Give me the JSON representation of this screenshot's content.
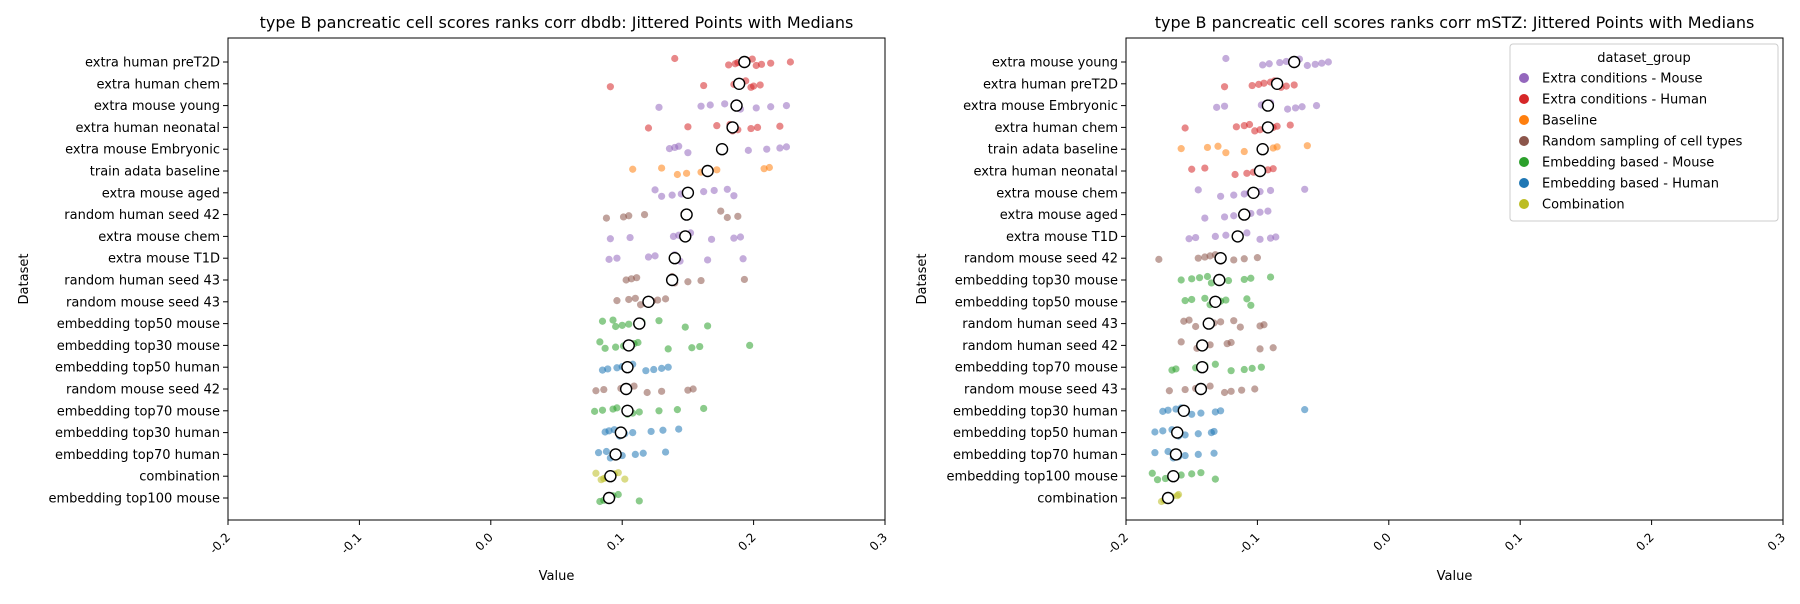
{
  "chart_data": [
    {
      "type": "scatter",
      "title": "type B pancreatic cell scores ranks corr dbdb: Jittered Points with Medians",
      "xlabel": "Value",
      "ylabel": "Dataset",
      "xlim": [
        -0.2,
        0.3
      ],
      "xticks": [
        "-0.2",
        "-0.1",
        "0.0",
        "0.1",
        "0.2",
        "0.3"
      ],
      "grid": false,
      "categories": [
        "extra human preT2D",
        "extra human chem",
        "extra mouse young",
        "extra human neonatal",
        "extra mouse Embryonic",
        "train adata baseline",
        "extra mouse aged",
        "random human seed 42",
        "extra mouse chem",
        "extra mouse T1D",
        "random human seed 43",
        "random mouse seed 43",
        "embedding top50 mouse",
        "embedding top30 mouse",
        "embedding top50 human",
        "random mouse seed 42",
        "embedding top70 mouse",
        "embedding top30 human",
        "embedding top70 human",
        "combination",
        "embedding top100 mouse"
      ],
      "groups": [
        "Extra conditions - Human",
        "Extra conditions - Human",
        "Extra conditions - Mouse",
        "Extra conditions - Human",
        "Extra conditions - Mouse",
        "Baseline",
        "Extra conditions - Mouse",
        "Random sampling of cell types",
        "Extra conditions - Mouse",
        "Extra conditions - Mouse",
        "Random sampling of cell types",
        "Random sampling of cell types",
        "Embedding based - Mouse",
        "Embedding based - Mouse",
        "Embedding based - Human",
        "Random sampling of cell types",
        "Embedding based - Mouse",
        "Embedding based - Human",
        "Embedding based - Human",
        "Combination",
        "Embedding based - Mouse"
      ],
      "medians": [
        0.193,
        0.189,
        0.187,
        0.184,
        0.176,
        0.165,
        0.15,
        0.149,
        0.148,
        0.14,
        0.138,
        0.12,
        0.113,
        0.105,
        0.104,
        0.103,
        0.104,
        0.099,
        0.095,
        0.091,
        0.09
      ],
      "points": [
        [
          0.14,
          0.181,
          0.186,
          0.188,
          0.193,
          0.195,
          0.199,
          0.202,
          0.206,
          0.213,
          0.228
        ],
        [
          0.091,
          0.162,
          0.185,
          0.188,
          0.19,
          0.194,
          0.198,
          0.2,
          0.205
        ],
        [
          0.128,
          0.16,
          0.167,
          0.178,
          0.187,
          0.19,
          0.202,
          0.213,
          0.225
        ],
        [
          0.12,
          0.15,
          0.172,
          0.182,
          0.184,
          0.188,
          0.198,
          0.203,
          0.22
        ],
        [
          0.136,
          0.14,
          0.143,
          0.15,
          0.176,
          0.196,
          0.21,
          0.22,
          0.225
        ],
        [
          0.108,
          0.13,
          0.142,
          0.149,
          0.16,
          0.165,
          0.172,
          0.208,
          0.212
        ],
        [
          0.125,
          0.13,
          0.138,
          0.145,
          0.15,
          0.162,
          0.17,
          0.18,
          0.185
        ],
        [
          0.088,
          0.101,
          0.105,
          0.117,
          0.147,
          0.149,
          0.175,
          0.18,
          0.188
        ],
        [
          0.091,
          0.106,
          0.139,
          0.143,
          0.148,
          0.152,
          0.168,
          0.185,
          0.19
        ],
        [
          0.09,
          0.096,
          0.12,
          0.125,
          0.14,
          0.144,
          0.165,
          0.192
        ],
        [
          0.103,
          0.107,
          0.111,
          0.138,
          0.14,
          0.15,
          0.16,
          0.193
        ],
        [
          0.096,
          0.105,
          0.11,
          0.114,
          0.118,
          0.12,
          0.123,
          0.127,
          0.133
        ],
        [
          0.085,
          0.093,
          0.095,
          0.1,
          0.105,
          0.113,
          0.115,
          0.128,
          0.148,
          0.165
        ],
        [
          0.083,
          0.087,
          0.095,
          0.101,
          0.105,
          0.109,
          0.112,
          0.135,
          0.153,
          0.159,
          0.197
        ],
        [
          0.085,
          0.089,
          0.096,
          0.1,
          0.104,
          0.108,
          0.118,
          0.124,
          0.13,
          0.135
        ],
        [
          0.08,
          0.086,
          0.099,
          0.103,
          0.109,
          0.119,
          0.13,
          0.15,
          0.154
        ],
        [
          0.079,
          0.085,
          0.093,
          0.096,
          0.104,
          0.108,
          0.113,
          0.128,
          0.142,
          0.162
        ],
        [
          0.087,
          0.09,
          0.094,
          0.098,
          0.099,
          0.102,
          0.108,
          0.122,
          0.131,
          0.143
        ],
        [
          0.082,
          0.088,
          0.091,
          0.095,
          0.1,
          0.11,
          0.116,
          0.133
        ],
        [
          0.08,
          0.084,
          0.086,
          0.088,
          0.09,
          0.091,
          0.094,
          0.097,
          0.102
        ],
        [
          0.083,
          0.086,
          0.088,
          0.09,
          0.091,
          0.093,
          0.097,
          0.113
        ]
      ]
    },
    {
      "type": "scatter",
      "title": "type B pancreatic cell scores ranks corr mSTZ: Jittered Points with Medians",
      "xlabel": "Value",
      "ylabel": "Dataset",
      "xlim": [
        -0.2,
        0.3
      ],
      "xticks": [
        "-0.2",
        "-0.1",
        "0.0",
        "0.1",
        "0.2",
        "0.3"
      ],
      "grid": false,
      "legend_placement": "top-right",
      "categories": [
        "extra mouse young",
        "extra human preT2D",
        "extra mouse Embryonic",
        "extra human chem",
        "train adata baseline",
        "extra human neonatal",
        "extra mouse chem",
        "extra mouse aged",
        "extra mouse T1D",
        "random mouse seed 42",
        "embedding top30 mouse",
        "embedding top50 mouse",
        "random human seed 43",
        "random human seed 42",
        "embedding top70 mouse",
        "random mouse seed 43",
        "embedding top30 human",
        "embedding top50 human",
        "embedding top70 human",
        "embedding top100 mouse",
        "combination"
      ],
      "groups": [
        "Extra conditions - Mouse",
        "Extra conditions - Human",
        "Extra conditions - Mouse",
        "Extra conditions - Human",
        "Baseline",
        "Extra conditions - Human",
        "Extra conditions - Mouse",
        "Extra conditions - Mouse",
        "Extra conditions - Mouse",
        "Random sampling of cell types",
        "Embedding based - Mouse",
        "Embedding based - Mouse",
        "Random sampling of cell types",
        "Random sampling of cell types",
        "Embedding based - Mouse",
        "Random sampling of cell types",
        "Embedding based - Human",
        "Embedding based - Human",
        "Embedding based - Human",
        "Embedding based - Mouse",
        "Combination"
      ],
      "medians": [
        -0.072,
        -0.085,
        -0.092,
        -0.092,
        -0.096,
        -0.098,
        -0.103,
        -0.11,
        -0.115,
        -0.128,
        -0.129,
        -0.132,
        -0.137,
        -0.142,
        -0.142,
        -0.143,
        -0.156,
        -0.161,
        -0.162,
        -0.164,
        -0.168
      ],
      "points": [
        [
          -0.124,
          -0.096,
          -0.091,
          -0.083,
          -0.078,
          -0.072,
          -0.068,
          -0.062,
          -0.056,
          -0.051,
          -0.046
        ],
        [
          -0.125,
          -0.104,
          -0.099,
          -0.095,
          -0.09,
          -0.087,
          -0.082,
          -0.078,
          -0.072
        ],
        [
          -0.131,
          -0.125,
          -0.097,
          -0.094,
          -0.09,
          -0.077,
          -0.071,
          -0.066,
          -0.055
        ],
        [
          -0.155,
          -0.116,
          -0.11,
          -0.106,
          -0.102,
          -0.098,
          -0.094,
          -0.088,
          -0.085,
          -0.075
        ],
        [
          -0.158,
          -0.138,
          -0.13,
          -0.124,
          -0.11,
          -0.096,
          -0.094,
          -0.088,
          -0.085,
          -0.062
        ],
        [
          -0.15,
          -0.14,
          -0.117,
          -0.108,
          -0.103,
          -0.098,
          -0.092,
          -0.088
        ],
        [
          -0.145,
          -0.128,
          -0.118,
          -0.11,
          -0.106,
          -0.098,
          -0.09,
          -0.064
        ],
        [
          -0.14,
          -0.125,
          -0.118,
          -0.112,
          -0.105,
          -0.098,
          -0.092
        ],
        [
          -0.152,
          -0.147,
          -0.132,
          -0.124,
          -0.116,
          -0.108,
          -0.098,
          -0.09,
          -0.086
        ],
        [
          -0.175,
          -0.145,
          -0.14,
          -0.136,
          -0.132,
          -0.128,
          -0.118,
          -0.11,
          -0.1
        ],
        [
          -0.158,
          -0.15,
          -0.144,
          -0.138,
          -0.135,
          -0.13,
          -0.122,
          -0.11,
          -0.105,
          -0.09
        ],
        [
          -0.155,
          -0.15,
          -0.14,
          -0.136,
          -0.133,
          -0.131,
          -0.128,
          -0.124,
          -0.108,
          -0.105
        ],
        [
          -0.156,
          -0.152,
          -0.147,
          -0.138,
          -0.135,
          -0.133,
          -0.128,
          -0.118,
          -0.113,
          -0.098,
          -0.095
        ],
        [
          -0.158,
          -0.146,
          -0.143,
          -0.14,
          -0.136,
          -0.123,
          -0.12,
          -0.098,
          -0.088
        ],
        [
          -0.165,
          -0.162,
          -0.147,
          -0.144,
          -0.14,
          -0.132,
          -0.12,
          -0.11,
          -0.104,
          -0.097
        ],
        [
          -0.167,
          -0.155,
          -0.147,
          -0.142,
          -0.136,
          -0.125,
          -0.12,
          -0.112,
          -0.102
        ],
        [
          -0.172,
          -0.168,
          -0.162,
          -0.158,
          -0.15,
          -0.143,
          -0.132,
          -0.128,
          -0.064
        ],
        [
          -0.178,
          -0.172,
          -0.165,
          -0.16,
          -0.155,
          -0.145,
          -0.135,
          -0.133
        ],
        [
          -0.178,
          -0.168,
          -0.164,
          -0.16,
          -0.155,
          -0.145,
          -0.133
        ],
        [
          -0.18,
          -0.176,
          -0.17,
          -0.166,
          -0.163,
          -0.158,
          -0.15,
          -0.143,
          -0.132
        ],
        [
          -0.173,
          -0.171,
          -0.169,
          -0.167,
          -0.165,
          -0.161,
          -0.16
        ]
      ],
      "legend": {
        "title": "dataset_group",
        "entries": [
          "Extra conditions - Mouse",
          "Extra conditions - Human",
          "Baseline",
          "Random sampling of cell types",
          "Embedding based - Mouse",
          "Embedding based - Human",
          "Combination"
        ]
      }
    }
  ],
  "colors": {
    "Extra conditions - Mouse": "#9467bd",
    "Extra conditions - Human": "#d62728",
    "Baseline": "#ff7f0e",
    "Random sampling of cell types": "#8c564b",
    "Embedding based - Mouse": "#2ca02c",
    "Embedding based - Human": "#1f77b4",
    "Combination": "#bcbd22"
  }
}
